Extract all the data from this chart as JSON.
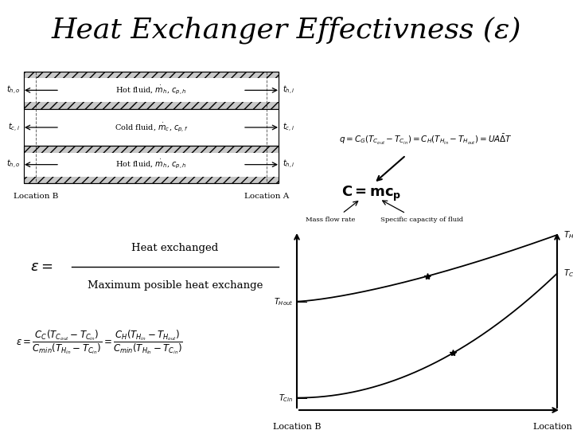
{
  "title": "Heat Exchanger Effectivness (ε)",
  "title_fontsize": 26,
  "background_color": "#ffffff",
  "text_color": "#000000",
  "hx_rows": [
    {
      "label_left": "$t_{h,o}$",
      "label_right": "$t_{h,i}$",
      "fluid": "Hot fluid, $\\dot{m}_h$, $c_{p,h}$",
      "hatch": "///",
      "arrow_dir": "left"
    },
    {
      "label_left": "$t_{c,i}$",
      "label_right": "$t_{c,i}$",
      "fluid": "Cold fluid, $\\dot{m}_c$, $c_{p,f}$",
      "hatch": "",
      "arrow_dir": "right"
    },
    {
      "label_left": "$t_{h,o}$",
      "label_right": "$t_{h,i}$",
      "fluid": "Hot fluid, $\\dot{m}_h$, $c_{p,h}$",
      "hatch": "///",
      "arrow_dir": "left"
    }
  ],
  "loc_b": "Location B",
  "loc_a": "Location A",
  "mass_flow_label": "Mass flow rate",
  "specific_cap_label": "Specific capacity of fluid",
  "epsilon_fraction_num": "Heat exchanged",
  "epsilon_fraction_den": "Maximum posible heat exchange",
  "graph": {
    "label_THin": "$T_{Hin}$",
    "label_TCout": "$T_{Cout}$",
    "label_THout": "$T_{Hout}$",
    "label_TCin": "$T_{Cin}$",
    "loc_b": "Location B",
    "loc_a": "Location A"
  }
}
